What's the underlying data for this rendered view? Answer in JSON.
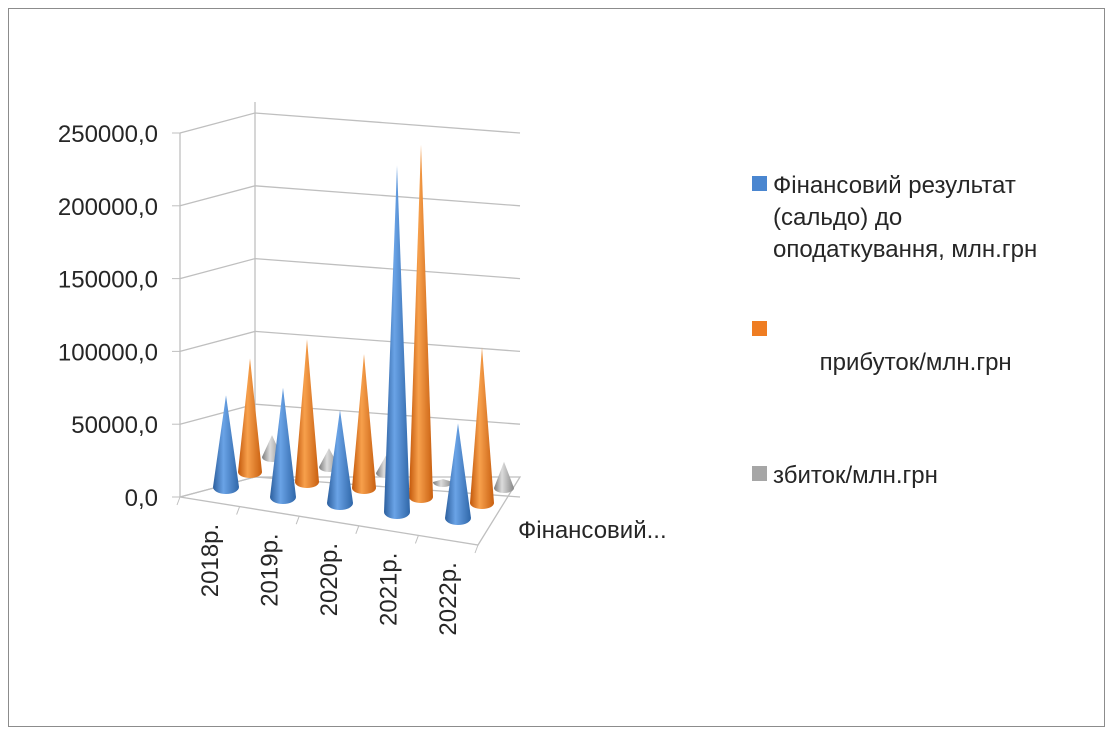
{
  "chart_data": {
    "type": "bar",
    "subtype": "3d-cone",
    "categories": [
      "2018р.",
      "2019р.",
      "2020р.",
      "2021р.",
      "2022р."
    ],
    "depth_axis_label": "Фінансовий...",
    "y_ticks": [
      "0,0",
      "50000,0",
      "100000,0",
      "150000,0",
      "200000,0",
      "250000,0"
    ],
    "ylim": [
      0,
      250000
    ],
    "grid": true,
    "legend_position": "right",
    "series": [
      {
        "name": "Фінансовий результат (сальдо) до оподаткування, млн.грн",
        "color": "#4a86d0",
        "values": [
          63000,
          75000,
          64000,
          238000,
          65000
        ]
      },
      {
        "name": "прибуток/млн.грн",
        "color": "#ef7d22",
        "values": [
          78000,
          98000,
          92000,
          242000,
          107000
        ]
      },
      {
        "name": "збиток/млн.грн",
        "color": "#a6a6a6",
        "values": [
          15000,
          13000,
          12000,
          2000,
          18000
        ]
      }
    ]
  },
  "legend": {
    "items": [
      {
        "lines": [
          "Фінансовий результат",
          "(сальдо) до",
          "оподаткування, млн.грн"
        ],
        "color": "#4a86d0"
      },
      {
        "lines": [
          " прибуток/млн.грн"
        ],
        "color": "#ef7d22"
      },
      {
        "lines": [
          "збиток/млн.грн"
        ],
        "color": "#a6a6a6"
      }
    ]
  }
}
